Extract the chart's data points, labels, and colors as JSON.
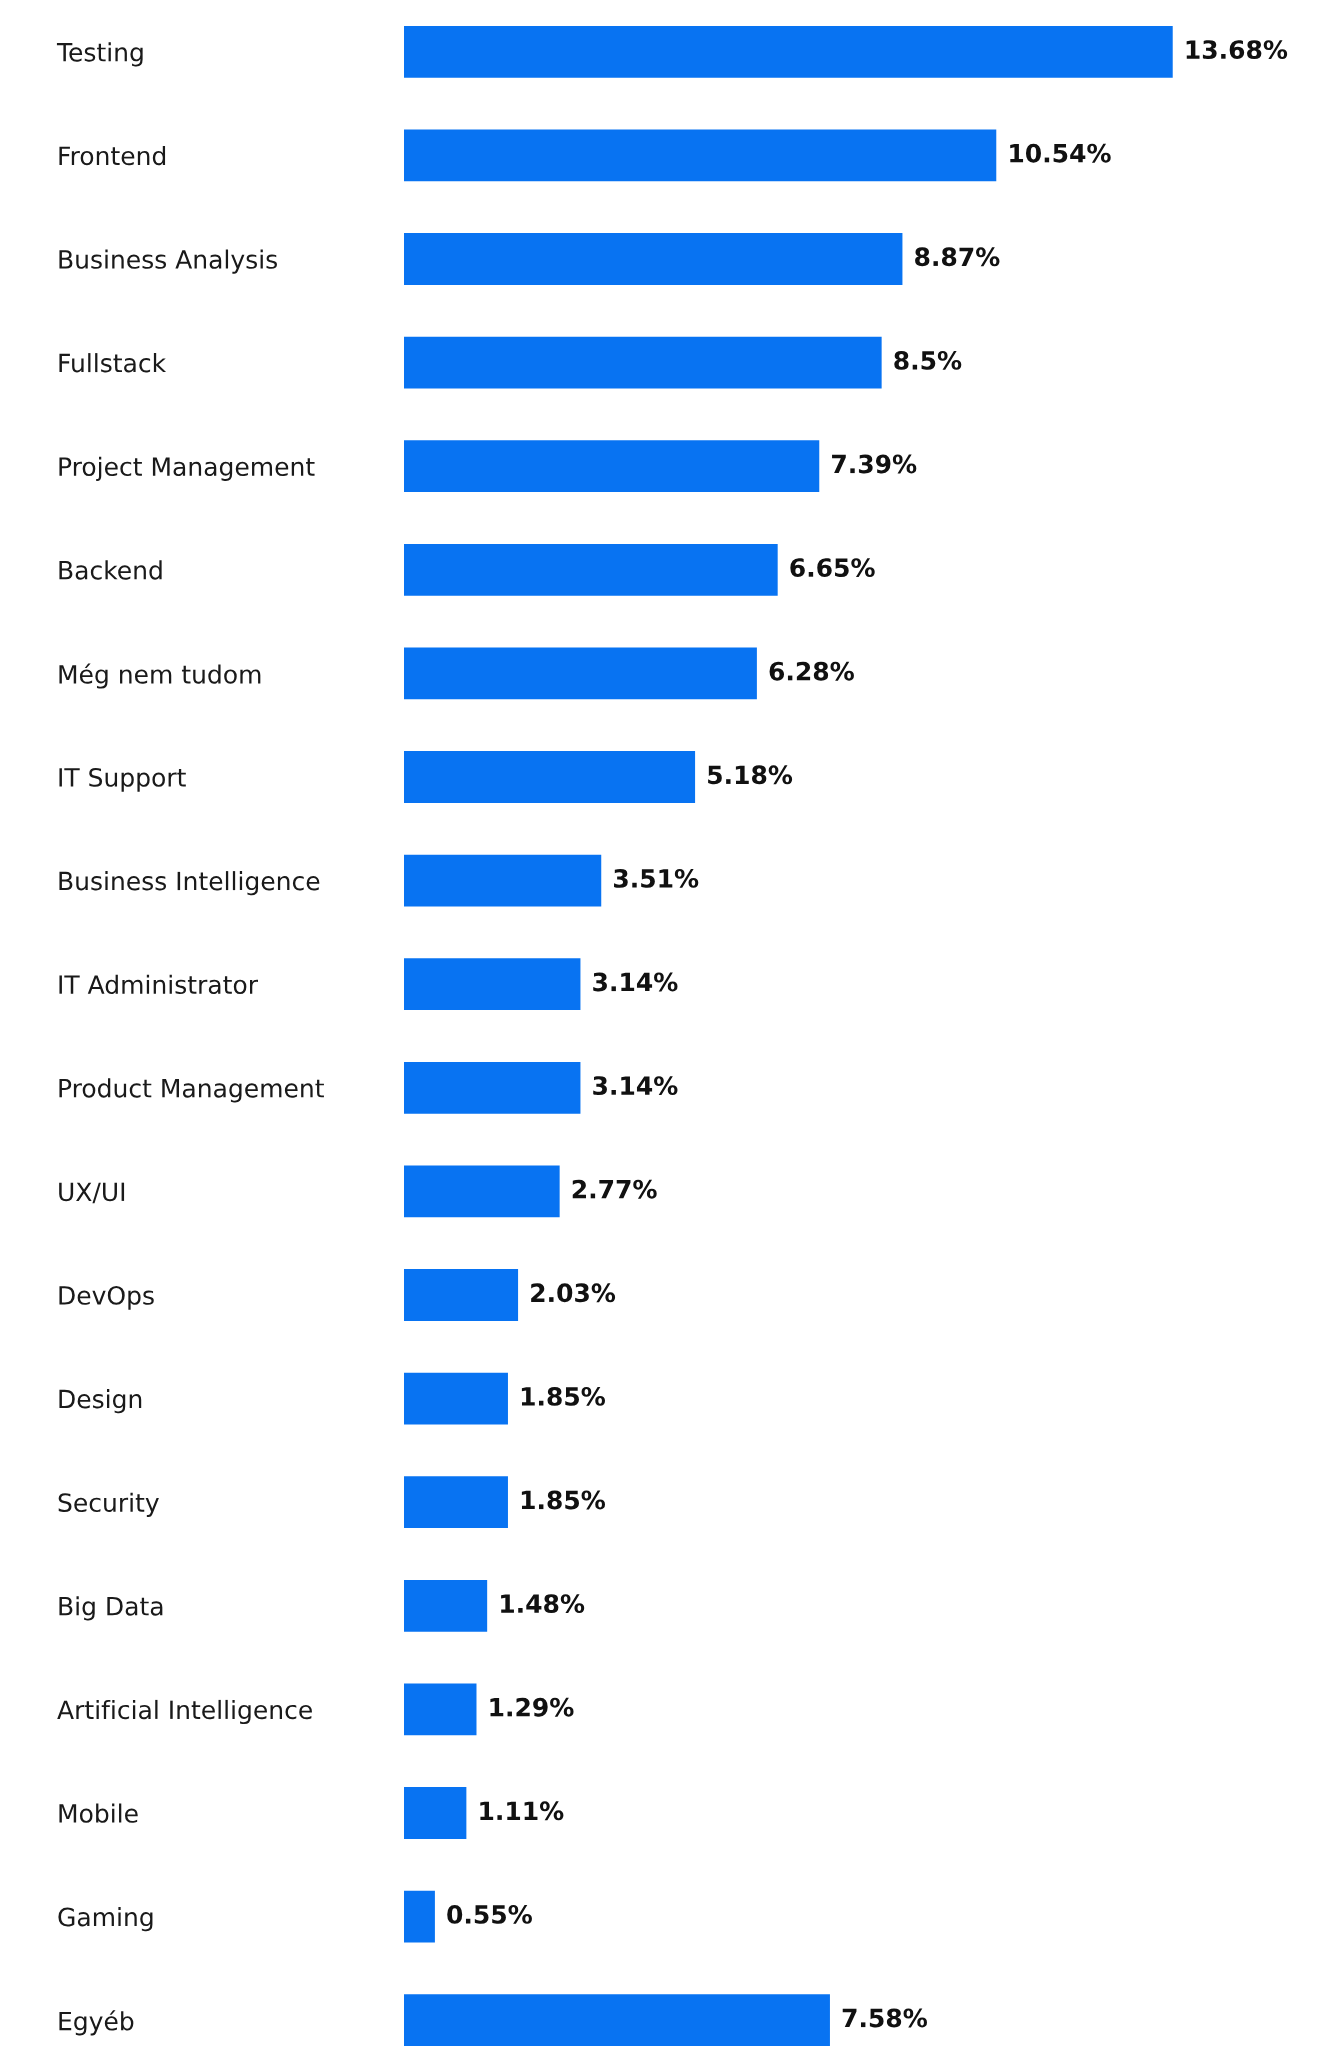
{
  "chart_data": {
    "type": "bar",
    "orientation": "horizontal",
    "data_labels": true,
    "tick_labels": "y",
    "grid": false,
    "legend": false,
    "categories": [
      "Testing",
      "Frontend",
      "Business Analysis",
      "Fullstack",
      "Project Management",
      "Backend",
      "Még nem tudom",
      "IT Support",
      "Business Intelligence",
      "IT Administrator",
      "Product Management",
      "UX/UI",
      "DevOps",
      "Design",
      "Security",
      "Big Data",
      "Artificial Intelligence",
      "Mobile",
      "Gaming",
      "Egyéb"
    ],
    "values": [
      13.68,
      10.54,
      8.87,
      8.5,
      7.39,
      6.65,
      6.28,
      5.18,
      3.51,
      3.14,
      3.14,
      2.77,
      2.03,
      1.85,
      1.85,
      1.48,
      1.29,
      1.11,
      0.55,
      7.58
    ],
    "value_labels": [
      "13.68%",
      "10.54%",
      "8.87%",
      "8.5%",
      "7.39%",
      "6.65%",
      "6.28%",
      "5.18%",
      "3.51%",
      "3.14%",
      "3.14%",
      "2.77%",
      "2.03%",
      "1.85%",
      "1.85%",
      "1.48%",
      "1.29%",
      "1.11%",
      "0.55%",
      "7.58%"
    ],
    "color": "#0873f2"
  }
}
